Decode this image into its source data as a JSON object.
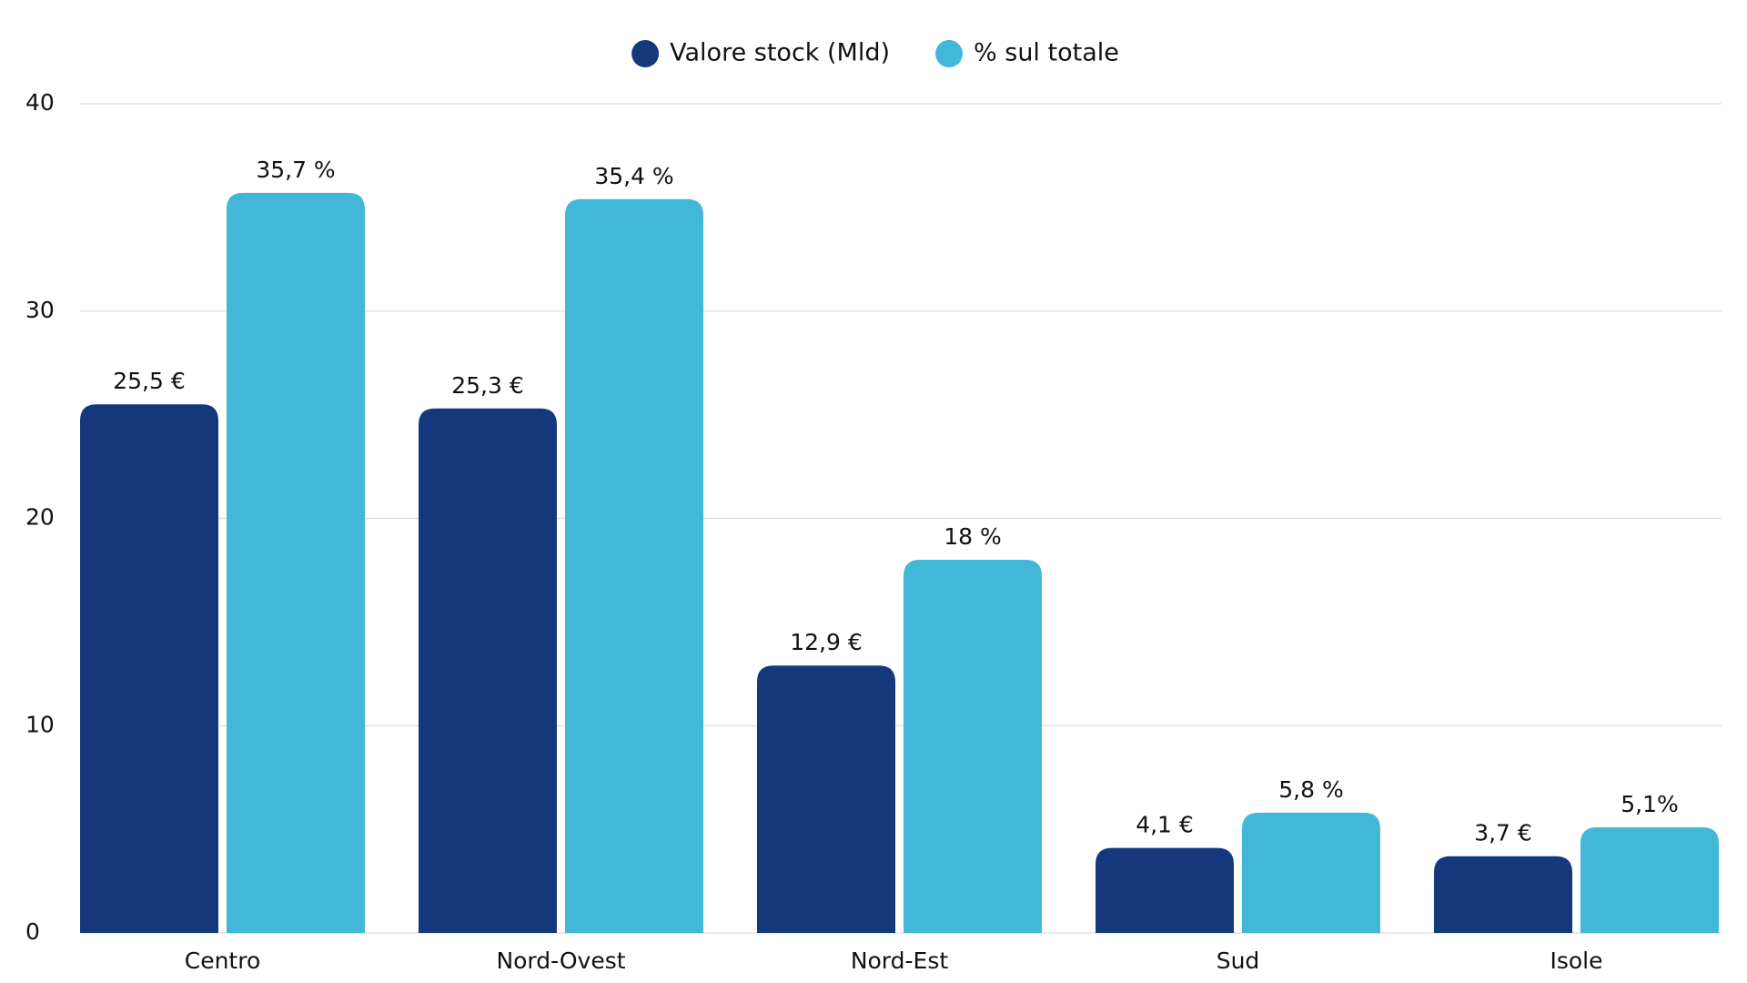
{
  "chart_data": {
    "type": "bar",
    "categories": [
      "Centro",
      "Nord-Ovest",
      "Nord-Est",
      "Sud",
      "Isole"
    ],
    "series": [
      {
        "name": "Valore stock (Mld)",
        "color": "#15387d",
        "values": [
          25.5,
          25.3,
          12.9,
          4.1,
          3.7
        ],
        "value_labels": [
          "25,5 €",
          "25,3 €",
          "12,9 €",
          "4,1 €",
          "3,7 €"
        ]
      },
      {
        "name": "% sul totale",
        "color": "#43b7d7",
        "values": [
          35.7,
          35.4,
          18,
          5.8,
          5.1
        ],
        "value_labels": [
          "35,7 %",
          "35,4 %",
          "18 %",
          "5,8 %",
          "5,1%"
        ]
      }
    ],
    "ylim": [
      0,
      40
    ],
    "yticks": [
      0,
      10,
      20,
      30,
      40
    ],
    "grid": true,
    "legend": "top"
  }
}
